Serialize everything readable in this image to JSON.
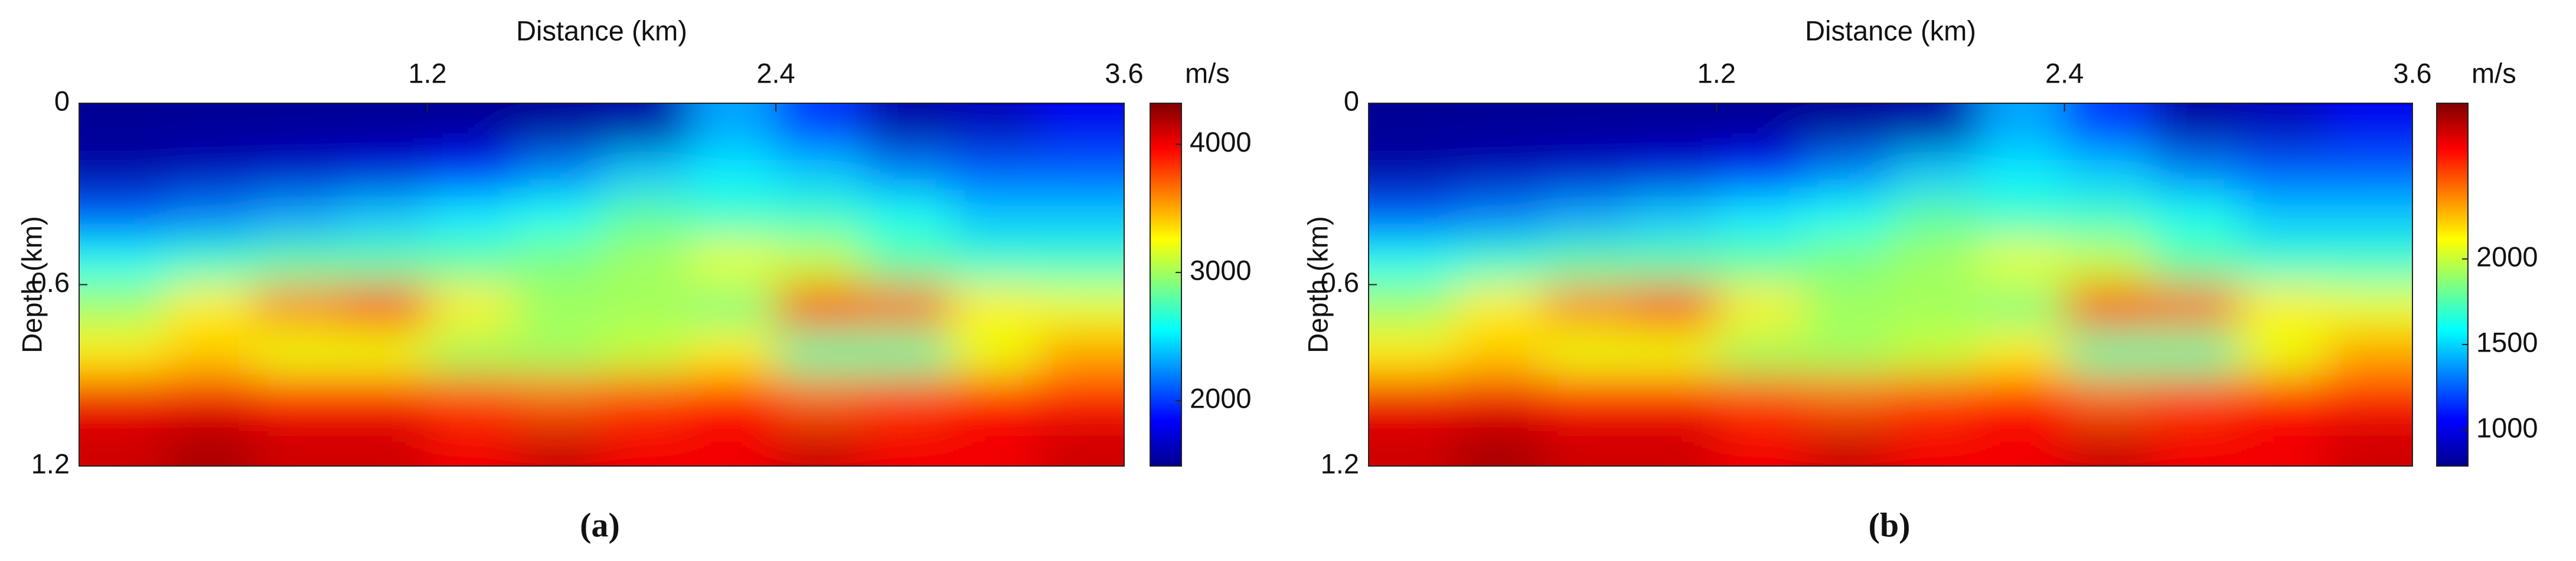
{
  "chart_data": [
    {
      "type": "heatmap",
      "x_label": "Distance (km)",
      "y_label": "Depth (km)",
      "colorbar_label": "m/s",
      "caption": "(a)",
      "xlim": [
        0,
        3.6
      ],
      "xticks": [
        1.2,
        2.4,
        3.6
      ],
      "ylim": [
        0,
        1.2
      ],
      "yticks": [
        0,
        0.6,
        1.2
      ],
      "clim": [
        1490,
        4320
      ],
      "cticks": [
        2000,
        3000,
        4000
      ],
      "colormap": "jet",
      "z": [
        [
          1550,
          1550,
          1550,
          1550,
          1550,
          1560,
          1600,
          2300,
          2000,
          1600,
          1650,
          1800
        ],
        [
          1600,
          1650,
          1700,
          1750,
          1900,
          2200,
          2400,
          2500,
          2400,
          2200,
          2100,
          2100
        ],
        [
          2100,
          2200,
          2300,
          2400,
          2500,
          2600,
          2800,
          2700,
          2700,
          2600,
          2400,
          2400
        ],
        [
          2600,
          2700,
          2800,
          2800,
          2800,
          2900,
          3000,
          3200,
          3100,
          2800,
          2700,
          2700
        ],
        [
          3000,
          3300,
          3600,
          3800,
          3300,
          3000,
          3000,
          2900,
          3800,
          3700,
          3300,
          3200
        ],
        [
          3300,
          3400,
          3200,
          3200,
          3000,
          3000,
          3100,
          3300,
          2800,
          2800,
          3200,
          3500
        ],
        [
          4000,
          4000,
          3900,
          3900,
          3800,
          3700,
          3800,
          3900,
          3700,
          3800,
          3900,
          3900
        ],
        [
          4100,
          4200,
          4100,
          4100,
          4000,
          4100,
          4000,
          4000,
          4100,
          4000,
          4000,
          4100
        ]
      ]
    },
    {
      "type": "heatmap",
      "x_label": "Distance (km)",
      "y_label": "Depth (km)",
      "colorbar_label": "m/s",
      "caption": "(b)",
      "xlim": [
        0,
        3.6
      ],
      "xticks": [
        1.2,
        2.4,
        3.6
      ],
      "ylim": [
        0,
        1.2
      ],
      "yticks": [
        0,
        0.6,
        1.2
      ],
      "clim": [
        790,
        2910
      ],
      "cticks": [
        1000,
        1500,
        2000
      ],
      "colormap": "jet",
      "z": [
        [
          835,
          835,
          835,
          835,
          835,
          842,
          872,
          1397,
          1172,
          872,
          910,
          1022
        ],
        [
          872,
          910,
          947,
          985,
          1097,
          1322,
          1472,
          1547,
          1472,
          1322,
          1247,
          1247
        ],
        [
          1247,
          1322,
          1397,
          1472,
          1547,
          1622,
          1771,
          1696,
          1696,
          1622,
          1472,
          1472
        ],
        [
          1622,
          1696,
          1771,
          1771,
          1771,
          1846,
          1921,
          2071,
          1996,
          1771,
          1696,
          1696
        ],
        [
          1921,
          2146,
          2370,
          2520,
          2146,
          1921,
          1921,
          1846,
          2520,
          2445,
          2146,
          2071
        ],
        [
          2146,
          2221,
          2071,
          2071,
          1921,
          1921,
          1996,
          2146,
          1771,
          1771,
          2071,
          2296
        ],
        [
          2670,
          2670,
          2595,
          2595,
          2520,
          2445,
          2520,
          2595,
          2445,
          2520,
          2595,
          2595
        ],
        [
          2745,
          2820,
          2745,
          2745,
          2670,
          2745,
          2670,
          2670,
          2745,
          2670,
          2670,
          2745
        ]
      ]
    }
  ]
}
